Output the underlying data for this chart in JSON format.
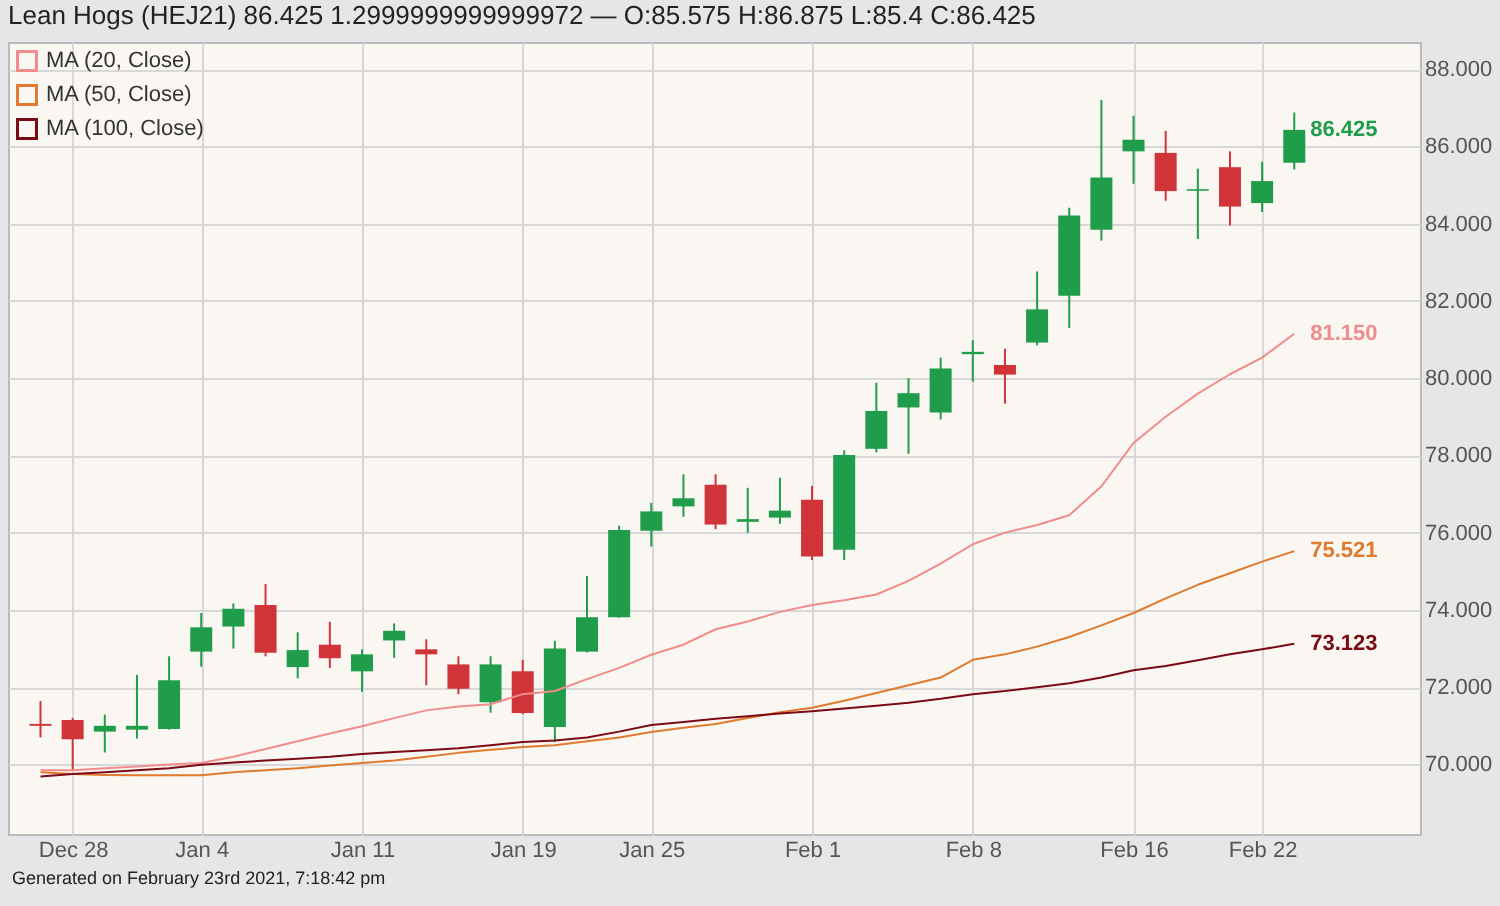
{
  "chart_data": {
    "type": "candlestick",
    "title": "Lean Hogs (HEJ21) 86.425 1.2999999999999972 — O:85.575 H:86.875 L:85.4 C:86.425",
    "categories": [
      null,
      "Dec 28",
      null,
      null,
      null,
      "Jan 4",
      null,
      null,
      null,
      null,
      "Jan 11",
      null,
      null,
      null,
      null,
      "Jan 19",
      null,
      null,
      null,
      "Jan 25",
      null,
      null,
      null,
      null,
      "Feb 1",
      null,
      null,
      null,
      null,
      "Feb 8",
      null,
      null,
      null,
      null,
      "Feb 16",
      null,
      null,
      null,
      "Feb 22",
      null
    ],
    "ohlc": [
      [
        71.05,
        71.64,
        70.7,
        71.0
      ],
      [
        71.15,
        71.2,
        69.85,
        70.65
      ],
      [
        70.85,
        71.29,
        70.31,
        71.0
      ],
      [
        70.9,
        72.32,
        70.67,
        71.0
      ],
      [
        70.92,
        72.8,
        70.9,
        72.18
      ],
      [
        72.92,
        73.92,
        72.53,
        73.55
      ],
      [
        73.57,
        74.17,
        73.0,
        74.03
      ],
      [
        74.13,
        74.67,
        72.8,
        72.89
      ],
      [
        72.52,
        73.42,
        72.23,
        72.96
      ],
      [
        73.1,
        73.69,
        72.5,
        72.75
      ],
      [
        72.41,
        72.98,
        71.88,
        72.85
      ],
      [
        73.21,
        73.65,
        72.76,
        73.46
      ],
      [
        72.98,
        73.24,
        72.05,
        72.85
      ],
      [
        72.59,
        72.8,
        71.82,
        71.96
      ],
      [
        71.61,
        72.8,
        71.34,
        72.59
      ],
      [
        72.41,
        72.71,
        71.3,
        71.33
      ],
      [
        70.97,
        73.2,
        70.58,
        73.0
      ],
      [
        72.92,
        74.88,
        72.9,
        73.81
      ],
      [
        73.81,
        76.18,
        73.8,
        76.07
      ],
      [
        76.05,
        76.77,
        75.64,
        76.55
      ],
      [
        76.68,
        77.51,
        76.41,
        76.89
      ],
      [
        77.24,
        77.51,
        76.09,
        76.21
      ],
      [
        76.28,
        77.16,
        76.0,
        76.35
      ],
      [
        76.39,
        77.42,
        76.23,
        76.57
      ],
      [
        76.85,
        77.21,
        75.29,
        75.38
      ],
      [
        75.56,
        78.13,
        75.29,
        78.01
      ],
      [
        78.17,
        79.88,
        78.08,
        79.15
      ],
      [
        79.24,
        80.0,
        78.04,
        79.61
      ],
      [
        79.11,
        80.53,
        78.93,
        80.25
      ],
      [
        80.62,
        80.98,
        79.91,
        80.68
      ],
      [
        80.34,
        80.76,
        79.34,
        80.09
      ],
      [
        80.92,
        82.76,
        80.85,
        81.78
      ],
      [
        82.13,
        84.41,
        81.3,
        84.21
      ],
      [
        83.84,
        87.2,
        83.56,
        85.19
      ],
      [
        85.87,
        86.79,
        85.03,
        86.17
      ],
      [
        85.83,
        86.4,
        84.59,
        84.84
      ],
      [
        84.85,
        85.42,
        83.6,
        84.89
      ],
      [
        85.46,
        85.87,
        83.95,
        84.44
      ],
      [
        84.53,
        85.6,
        84.3,
        85.1
      ],
      [
        85.575,
        86.875,
        85.4,
        86.425
      ]
    ],
    "colors": [
      "#d13438",
      "#d13438",
      "#1f9d4a",
      "#1f9d4a",
      "#1f9d4a",
      "#1f9d4a",
      "#1f9d4a",
      "#d13438",
      "#1f9d4a",
      "#d13438",
      "#1f9d4a",
      "#1f9d4a",
      "#d13438",
      "#d13438",
      "#1f9d4a",
      "#d13438",
      "#1f9d4a",
      "#1f9d4a",
      "#1f9d4a",
      "#1f9d4a",
      "#1f9d4a",
      "#d13438",
      "#1f9d4a",
      "#1f9d4a",
      "#d13438",
      "#1f9d4a",
      "#1f9d4a",
      "#1f9d4a",
      "#1f9d4a",
      "#1f9d4a",
      "#d13438",
      "#1f9d4a",
      "#1f9d4a",
      "#1f9d4a",
      "#1f9d4a",
      "#d13438",
      "#1f9d4a",
      "#d13438",
      "#1f9d4a",
      "#1f9d4a"
    ],
    "series": [
      {
        "name": "MA (20, Close)",
        "type": "line",
        "color": "#f08c8c",
        "values": [
          69.85,
          69.85,
          69.9,
          69.95,
          70.0,
          70.04,
          70.2,
          70.4,
          70.6,
          70.8,
          70.99,
          71.2,
          71.4,
          71.5,
          71.56,
          71.82,
          71.9,
          72.21,
          72.5,
          72.84,
          73.1,
          73.5,
          73.7,
          73.95,
          74.13,
          74.25,
          74.4,
          74.75,
          75.2,
          75.7,
          76.0,
          76.2,
          76.45,
          77.2,
          78.32,
          79.0,
          79.6,
          80.1,
          80.53,
          81.15
        ],
        "value_labels": [
          null,
          null,
          null,
          null,
          null,
          null,
          null,
          null,
          null,
          null,
          null,
          null,
          null,
          null,
          null,
          null,
          null,
          null,
          null,
          null,
          null,
          null,
          null,
          null,
          null,
          null,
          null,
          null,
          null,
          null,
          null,
          null,
          null,
          null,
          null,
          null,
          null,
          null,
          null,
          "81.150"
        ]
      },
      {
        "name": "MA (50, Close)",
        "type": "line",
        "color": "#e07a2e",
        "values": [
          69.8,
          69.75,
          69.73,
          69.72,
          69.72,
          69.72,
          69.8,
          69.85,
          69.9,
          69.97,
          70.04,
          70.1,
          70.2,
          70.3,
          70.38,
          70.45,
          70.5,
          70.6,
          70.7,
          70.84,
          70.95,
          71.05,
          71.2,
          71.35,
          71.47,
          71.65,
          71.85,
          72.05,
          72.25,
          72.71,
          72.85,
          73.05,
          73.3,
          73.6,
          73.92,
          74.3,
          74.65,
          74.95,
          75.25,
          75.521
        ],
        "value_labels": [
          null,
          null,
          null,
          null,
          null,
          null,
          null,
          null,
          null,
          null,
          null,
          null,
          null,
          null,
          null,
          null,
          null,
          null,
          null,
          null,
          null,
          null,
          null,
          null,
          null,
          null,
          null,
          null,
          null,
          null,
          null,
          null,
          null,
          null,
          null,
          null,
          null,
          null,
          null,
          "75.521"
        ]
      },
      {
        "name": "MA (100, Close)",
        "type": "line",
        "color": "#7a0a14",
        "values": [
          69.69,
          69.75,
          69.8,
          69.85,
          69.9,
          69.99,
          70.05,
          70.1,
          70.15,
          70.2,
          70.27,
          70.32,
          70.37,
          70.42,
          70.5,
          70.58,
          70.62,
          70.7,
          70.85,
          71.02,
          71.1,
          71.18,
          71.25,
          71.32,
          71.38,
          71.45,
          71.52,
          71.6,
          71.7,
          71.82,
          71.9,
          72.0,
          72.1,
          72.25,
          72.44,
          72.55,
          72.7,
          72.85,
          72.98,
          73.123
        ],
        "value_labels": [
          null,
          null,
          null,
          null,
          null,
          null,
          null,
          null,
          null,
          null,
          null,
          null,
          null,
          null,
          null,
          null,
          null,
          null,
          null,
          null,
          null,
          null,
          null,
          null,
          null,
          null,
          null,
          null,
          null,
          null,
          null,
          null,
          null,
          null,
          null,
          null,
          null,
          null,
          null,
          "73.123"
        ]
      }
    ],
    "ylim": [
      68.2,
      88.7
    ],
    "yticks": [
      {
        "value": 70,
        "label": "70.000"
      },
      {
        "value": 72,
        "label": "72.000"
      },
      {
        "value": 74,
        "label": "74.000"
      },
      {
        "value": 76,
        "label": "76.000"
      },
      {
        "value": 78,
        "label": "78.000"
      },
      {
        "value": 80,
        "label": "80.000"
      },
      {
        "value": 82,
        "label": "82.000"
      },
      {
        "value": 84,
        "label": "84.000"
      },
      {
        "value": 86,
        "label": "86.000"
      },
      {
        "value": 88,
        "label": "88.000"
      }
    ],
    "grid": true,
    "legend": "top left",
    "line_style": "solid",
    "marker": "none",
    "value_labels": [
      null,
      null,
      null,
      null,
      null,
      null,
      null,
      null,
      null,
      null,
      null,
      null,
      null,
      null,
      null,
      null,
      null,
      null,
      null,
      null,
      null,
      null,
      null,
      null,
      null,
      null,
      null,
      null,
      null,
      null,
      null,
      null,
      null,
      null,
      null,
      null,
      null,
      null,
      null,
      "86.425"
    ],
    "annotations": [
      "Generated on February 23rd 2021, 7:18:42 pm"
    ]
  }
}
